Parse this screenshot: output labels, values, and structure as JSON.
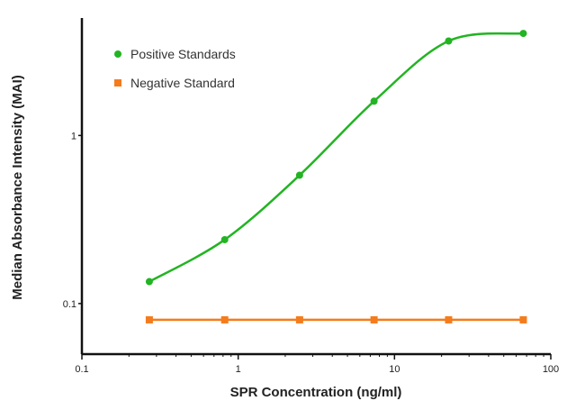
{
  "chart_data": {
    "type": "line",
    "title": "",
    "xlabel": "SPR Concentration (ng/ml)",
    "ylabel": "Median Absorbance Intensity (MAI)",
    "xscale": "log",
    "yscale": "log",
    "xlim": [
      0.1,
      100
    ],
    "ylim": [
      0.05,
      5
    ],
    "xticks": [
      {
        "v": 0.1,
        "label": "0.1"
      },
      {
        "v": 1,
        "label": "1"
      },
      {
        "v": 10,
        "label": "10"
      },
      {
        "v": 100,
        "label": "100"
      }
    ],
    "yticks": [
      {
        "v": 0.1,
        "label": "0.1"
      },
      {
        "v": 1,
        "label": "1"
      }
    ],
    "grid": false,
    "legend": "top-left",
    "series": [
      {
        "name": "Positive Standards",
        "color": "#22b422",
        "marker": "circle",
        "smooth": true,
        "x": [
          0.27,
          0.82,
          2.47,
          7.4,
          22.2,
          66.7
        ],
        "y": [
          0.135,
          0.24,
          0.58,
          1.6,
          3.65,
          4.05
        ]
      },
      {
        "name": "Negative Standard",
        "color": "#f47c1c",
        "marker": "square",
        "smooth": false,
        "x": [
          0.27,
          0.82,
          2.47,
          7.4,
          22.2,
          66.7
        ],
        "y": [
          0.08,
          0.08,
          0.08,
          0.08,
          0.08,
          0.08
        ]
      }
    ]
  }
}
